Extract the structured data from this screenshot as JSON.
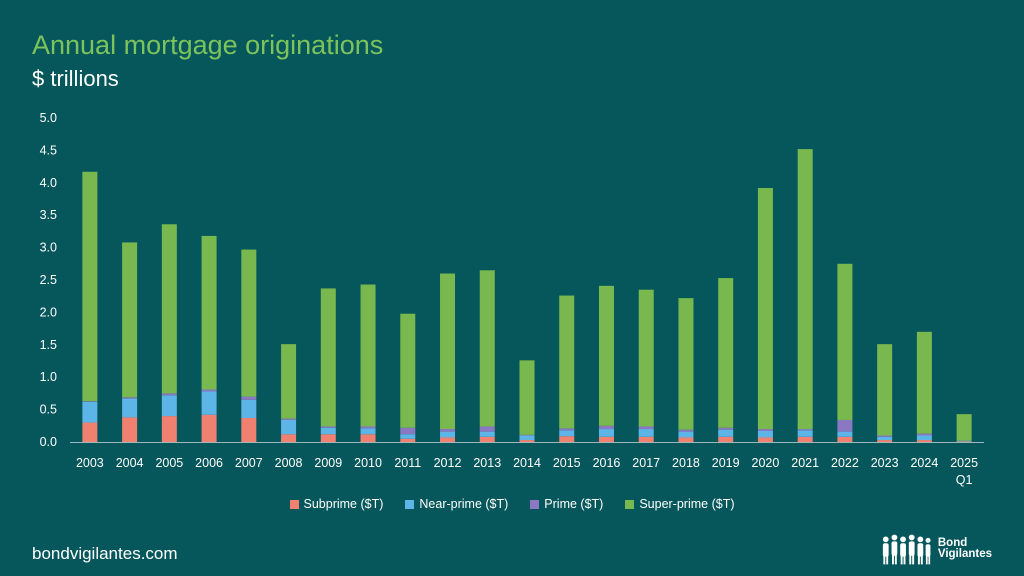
{
  "title": "Annual mortgage originations",
  "subtitle": "$ trillions",
  "footer": {
    "website": "bondvigilantes.com"
  },
  "brand": {
    "line1": "Bond",
    "line2": "Vigilantes",
    "icon": "people-silhouettes-logo"
  },
  "colors": {
    "background": "#06575b",
    "title": "#7dc35b",
    "subprime": "#f08070",
    "near_prime": "#5cb5e6",
    "prime": "#8a78c2",
    "super_prime": "#78b84e"
  },
  "chart_data": {
    "type": "bar",
    "stacked": true,
    "categories": [
      "2003",
      "2004",
      "2005",
      "2006",
      "2007",
      "2008",
      "2009",
      "2010",
      "2011",
      "2012",
      "2013",
      "2014",
      "2015",
      "2016",
      "2017",
      "2018",
      "2019",
      "2020",
      "2021",
      "2022",
      "2023",
      "2024",
      "2025"
    ],
    "category_sublabels": {
      "2025": "Q1"
    },
    "ylim": [
      0,
      5.0
    ],
    "yticks": [
      "0.0",
      "0.5",
      "1.0",
      "1.5",
      "2.0",
      "2.5",
      "3.0",
      "3.5",
      "4.0",
      "4.5",
      "5.0"
    ],
    "grid": false,
    "legend": "bottom",
    "series": [
      {
        "name": "Subprime ($T)",
        "color_key": "subprime",
        "values": [
          0.3,
          0.38,
          0.4,
          0.42,
          0.37,
          0.12,
          0.12,
          0.12,
          0.05,
          0.07,
          0.08,
          0.03,
          0.09,
          0.08,
          0.08,
          0.07,
          0.08,
          0.07,
          0.08,
          0.08,
          0.03,
          0.03,
          0.01
        ]
      },
      {
        "name": "Near-prime ($T)",
        "color_key": "near_prime",
        "values": [
          0.32,
          0.29,
          0.32,
          0.36,
          0.28,
          0.22,
          0.1,
          0.09,
          0.07,
          0.09,
          0.08,
          0.07,
          0.09,
          0.12,
          0.12,
          0.09,
          0.11,
          0.1,
          0.1,
          0.08,
          0.05,
          0.07,
          0.01
        ]
      },
      {
        "name": "Prime ($T)",
        "color_key": "prime",
        "values": [
          0.01,
          0.02,
          0.03,
          0.03,
          0.05,
          0.02,
          0.02,
          0.03,
          0.1,
          0.04,
          0.08,
          0.01,
          0.03,
          0.05,
          0.04,
          0.03,
          0.03,
          0.03,
          0.02,
          0.18,
          0.02,
          0.03,
          0.0
        ]
      },
      {
        "name": "Super-prime ($T)",
        "color_key": "super_prime",
        "values": [
          3.54,
          2.39,
          2.61,
          2.37,
          2.27,
          1.15,
          2.13,
          2.19,
          1.76,
          2.4,
          2.41,
          1.15,
          2.05,
          2.16,
          2.11,
          2.03,
          2.31,
          3.72,
          4.32,
          2.41,
          1.41,
          1.57,
          0.41
        ]
      }
    ]
  }
}
